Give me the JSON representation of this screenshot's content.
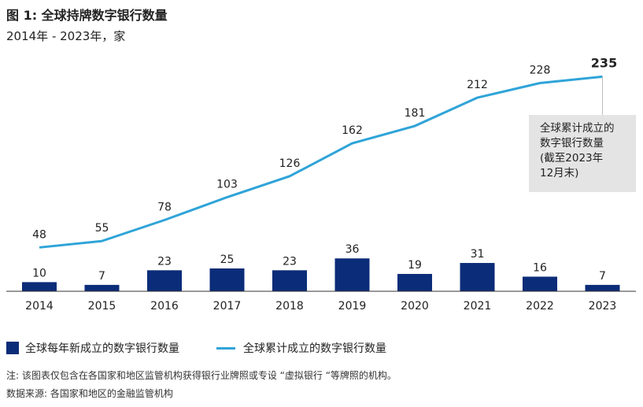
{
  "title": "图 1: 全球持牌数字银行数量",
  "subtitle": "2014年 - 2023年，家",
  "chart_data": {
    "type": "bar+line",
    "categories": [
      "2014",
      "2015",
      "2016",
      "2017",
      "2018",
      "2019",
      "2020",
      "2021",
      "2022",
      "2023"
    ],
    "series": [
      {
        "name": "全球每年新成立的数字银行数量",
        "type": "bar",
        "color": "#0b2c78",
        "values": [
          10,
          7,
          23,
          25,
          23,
          36,
          19,
          31,
          16,
          7
        ]
      },
      {
        "name": "全球累计成立的数字银行数量",
        "type": "line",
        "color": "#2fa4d8",
        "values": [
          48,
          55,
          78,
          103,
          126,
          162,
          181,
          212,
          228,
          235
        ]
      }
    ],
    "annotation": "全球累计成立的数字银行数量（截至2023年12月末）",
    "legend": "bottom-left"
  },
  "annotation_lines": [
    "全球累计成立的",
    "数字银行数量",
    "(截至2023年",
    "12月末)"
  ],
  "note": "注: 该图表仅包含在各国家和地区监管机构获得银行业牌照或专设 “虚拟银行 “等牌照的机构。",
  "source": "数据来源: 各国家和地区的金融监管机构"
}
